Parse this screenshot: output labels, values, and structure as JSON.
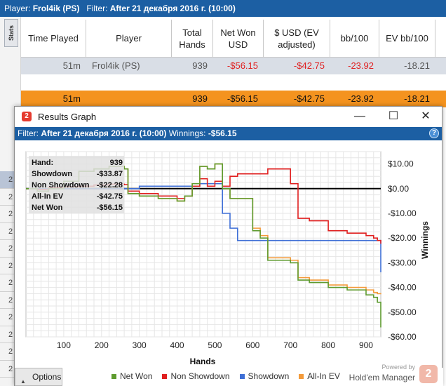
{
  "topbar": {
    "player_key": "Player:",
    "player_value": "Frol4ik (PS)",
    "filter_key": "Filter:",
    "filter_value": "After 21 декабря 2016 г. (10:00)"
  },
  "stats_tab_label": "Stats",
  "table": {
    "headers": [
      "Time Played",
      "Player",
      "Total Hands",
      "Net Won USD",
      "$ USD (EV adjusted)",
      "bb/100",
      "EV bb/100"
    ],
    "player_row": [
      "51m",
      "Frol4ik (PS)",
      "939",
      "-$56.15",
      "-$42.75",
      "-23.92",
      "-18.21"
    ],
    "total_row": [
      "51m",
      "",
      "939",
      "-$56.15",
      "-$42.75",
      "-23.92",
      "-18.21"
    ]
  },
  "gutter_rows": [
    "2",
    "2",
    "2",
    "2",
    "2",
    "2",
    "2",
    "2",
    "2",
    "2",
    "2",
    "2"
  ],
  "window": {
    "title": "Results Graph",
    "filter_key": "Filter:",
    "filter_value": "After 21 декабря 2016 г. (10:00)",
    "winnings_key": "Winnings:",
    "winnings_value": "-$56.15",
    "minimize_glyph": "—",
    "maximize_glyph": "☐",
    "close_glyph": "✕",
    "help_glyph": "?",
    "logo_glyph": "2"
  },
  "summary_box": {
    "rows": [
      {
        "label": "Hand:",
        "value": "939"
      },
      {
        "label": "Showdown",
        "value": "-$33.87"
      },
      {
        "label": "Non Showdown",
        "value": "-$22.28"
      },
      {
        "label": "All-In EV",
        "value": "-$42.75"
      },
      {
        "label": "Net Won",
        "value": "-$56.15"
      }
    ]
  },
  "chart_data": {
    "type": "line",
    "xlabel": "Hands",
    "ylabel": "Winnings",
    "xlim": [
      0,
      939
    ],
    "ylim": [
      -60,
      15
    ],
    "x_ticks": [
      100,
      200,
      300,
      400,
      500,
      600,
      700,
      800,
      900
    ],
    "y_ticks": [
      10,
      0,
      -10,
      -20,
      -30,
      -40,
      -50,
      -60
    ],
    "y_tick_labels": [
      "$10.00",
      "$0.00",
      "-$10.00",
      "-$20.00",
      "-$30.00",
      "-$40.00",
      "-$50.00",
      "-$60.00"
    ],
    "grid": true,
    "x": [
      0,
      30,
      60,
      100,
      140,
      180,
      220,
      260,
      270,
      300,
      350,
      400,
      420,
      440,
      460,
      480,
      500,
      520,
      540,
      560,
      600,
      620,
      640,
      680,
      700,
      720,
      750,
      800,
      850,
      900,
      920,
      930,
      939
    ],
    "series": [
      {
        "name": "Net Won",
        "color": "#5e9b2f",
        "values": [
          0,
          -1,
          0,
          3,
          7,
          8,
          9,
          8,
          -2,
          -3,
          -4,
          -5,
          -3,
          2,
          9,
          8,
          10,
          0,
          -4,
          -4,
          -17,
          -20,
          -29,
          -29,
          -30,
          -37,
          -38,
          -40,
          -41,
          -43,
          -44,
          -46,
          -56.15
        ]
      },
      {
        "name": "Non Showdown",
        "color": "#e02020",
        "values": [
          0,
          -0.3,
          0.5,
          0.8,
          1,
          1.5,
          1.8,
          1.6,
          -1,
          -2,
          -3,
          -4,
          -3,
          1,
          4,
          1,
          3,
          1,
          5,
          6,
          6,
          6,
          8,
          8,
          2,
          -12,
          -13,
          -17,
          -18,
          -19,
          -20,
          -21,
          -22.28
        ]
      },
      {
        "name": "Showdown",
        "color": "#3f6fd6",
        "values": [
          0,
          0,
          0,
          0,
          0,
          0,
          0,
          0,
          0,
          1,
          1,
          1,
          1,
          1,
          2,
          2,
          2,
          -10,
          -16,
          -21,
          -21,
          -21,
          -21,
          -21,
          -21,
          -21,
          -21,
          -21,
          -21,
          -21,
          -21,
          -21,
          -33.87
        ]
      },
      {
        "name": "All-In EV",
        "color": "#f39a3a",
        "values": [
          0,
          -1,
          0,
          3,
          7,
          8,
          9,
          8,
          -2,
          -3,
          -4,
          -5,
          -3,
          2,
          9,
          8,
          10,
          0,
          -4,
          -4,
          -16,
          -19,
          -28,
          -28,
          -29,
          -36,
          -37,
          -39,
          -40,
          -41,
          -42,
          -42.5,
          -42.75
        ]
      }
    ]
  },
  "bottom": {
    "options_label": "Options",
    "options_glyph": "▲",
    "powered_by": "Powered by",
    "brand": "Hold'em Manager",
    "brand_logo": "2"
  }
}
